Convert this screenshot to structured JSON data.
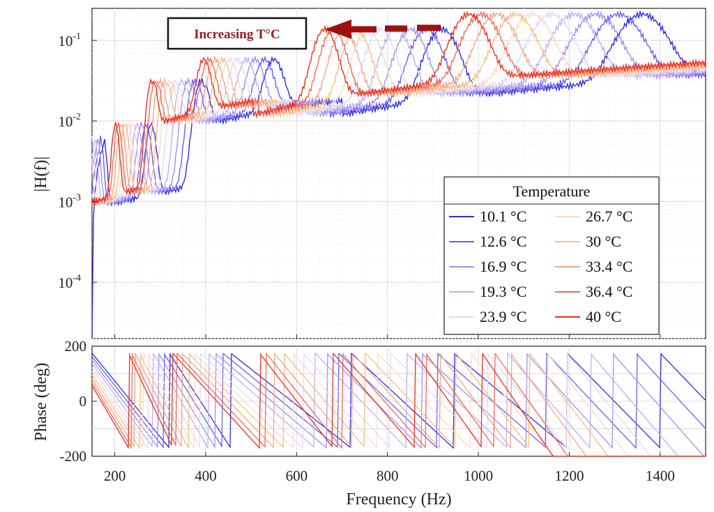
{
  "chart_data": {
    "type": "line",
    "xlabel": "Frequency (Hz)",
    "xlim": [
      150,
      1500
    ],
    "x_ticks": [
      "200",
      "400",
      "600",
      "800",
      "1000",
      "1200",
      "1400"
    ],
    "x_tick_values": [
      200,
      400,
      600,
      800,
      1000,
      1200,
      1400
    ],
    "grid": true,
    "magnitude": {
      "ylabel": "|H(f)|",
      "yscale": "log",
      "ylim": [
        2e-05,
        0.25
      ],
      "y_ticks": [
        {
          "base": "10",
          "exp": "-4",
          "value": 0.0001
        },
        {
          "base": "10",
          "exp": "-3",
          "value": 0.001
        },
        {
          "base": "10",
          "exp": "-2",
          "value": 0.01
        },
        {
          "base": "10",
          "exp": "-1",
          "value": 0.1
        }
      ]
    },
    "phase": {
      "ylabel": "Phase (deg)",
      "ylim": [
        -200,
        200
      ],
      "y_ticks": [
        "200",
        "0",
        "-200"
      ],
      "y_tick_values": [
        200,
        0,
        -200
      ]
    },
    "legend": {
      "title": "Temperature",
      "placement": "lower-right of magnitude panel",
      "columns": 2
    },
    "annotation": {
      "text": "Increasing T°C",
      "arrow_direction": "left",
      "arrow_color": "#a01010"
    },
    "series": [
      {
        "name": "10.1 °C",
        "temperature": 10.1,
        "color": "#2b2bf0",
        "shift": 1.0
      },
      {
        "name": "12.6 °C",
        "temperature": 12.6,
        "color": "#6a5ef2",
        "shift": 0.962
      },
      {
        "name": "16.9 °C",
        "temperature": 16.9,
        "color": "#9f8ff5",
        "shift": 0.925
      },
      {
        "name": "19.3 °C",
        "temperature": 19.3,
        "color": "#bdaff7",
        "shift": 0.89
      },
      {
        "name": "23.9 °C",
        "temperature": 23.9,
        "color": "#e2d8fa",
        "shift": 0.853
      },
      {
        "name": "26.7 °C",
        "temperature": 26.7,
        "color": "#fbd9cc",
        "shift": 0.822
      },
      {
        "name": "30 °C",
        "temperature": 30,
        "color": "#f7c07a",
        "shift": 0.795
      },
      {
        "name": "33.4 °C",
        "temperature": 33.4,
        "color": "#f7a489",
        "shift": 0.765
      },
      {
        "name": "36.4 °C",
        "temperature": 36.4,
        "color": "#f46a56",
        "shift": 0.74
      },
      {
        "name": "40 °C",
        "temperature": 40,
        "color": "#f02d1c",
        "shift": 0.72
      }
    ],
    "reference_curve_10C": {
      "description_of": "magnitude peaks of the 10.1 °C curve (Hz, |H|)",
      "peaks": [
        [
          175,
          0.0055
        ],
        [
          280,
          0.008
        ],
        [
          390,
          0.03
        ],
        [
          550,
          0.045
        ],
        [
          920,
          0.12
        ],
        [
          1360,
          0.18
        ]
      ],
      "phase_wraps_hz": [
        320,
        455,
        720,
        945,
        1195,
        1400
      ]
    }
  }
}
